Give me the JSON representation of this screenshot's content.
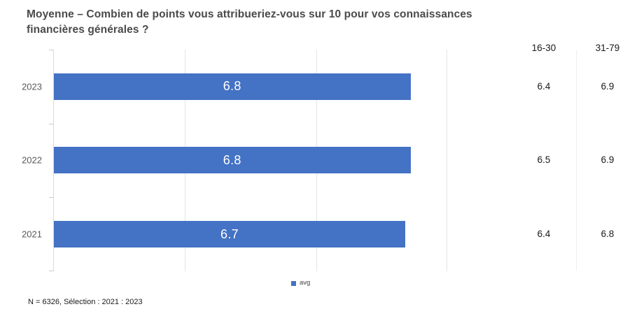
{
  "title": "Moyenne – Combien de points vous attribueriez-vous sur 10 pour vos connaissances financières générales ?",
  "chart_data": {
    "type": "bar",
    "orientation": "horizontal",
    "title": "Moyenne – Combien de points vous attribueriez-vous sur 10 pour vos connaissances financières générales ?",
    "categories": [
      "2023",
      "2022",
      "2021"
    ],
    "series": [
      {
        "name": "avg",
        "color": "#4472C4",
        "values": [
          6.8,
          6.8,
          6.7
        ]
      }
    ],
    "xlim": [
      0,
      7.5
    ],
    "gridline_interval": 2.5,
    "grid": true,
    "legend_position": "bottom"
  },
  "legend": {
    "label": "avg",
    "swatch_color": "#4472C4"
  },
  "age_table": {
    "columns": [
      "16-30",
      "31-79"
    ],
    "rows": [
      {
        "category": "2023",
        "values": [
          "6.4",
          "6.9"
        ]
      },
      {
        "category": "2022",
        "values": [
          "6.5",
          "6.9"
        ]
      },
      {
        "category": "2021",
        "values": [
          "6.4",
          "6.8"
        ]
      }
    ]
  },
  "footnote": "N = 6326, Sélection : 2021 : 2023",
  "colors": {
    "bar": "#4472C4",
    "title_text": "#4a4a4a",
    "axis_label": "#595959",
    "gridline": "#e4e4e4",
    "divider": "#ededed"
  }
}
